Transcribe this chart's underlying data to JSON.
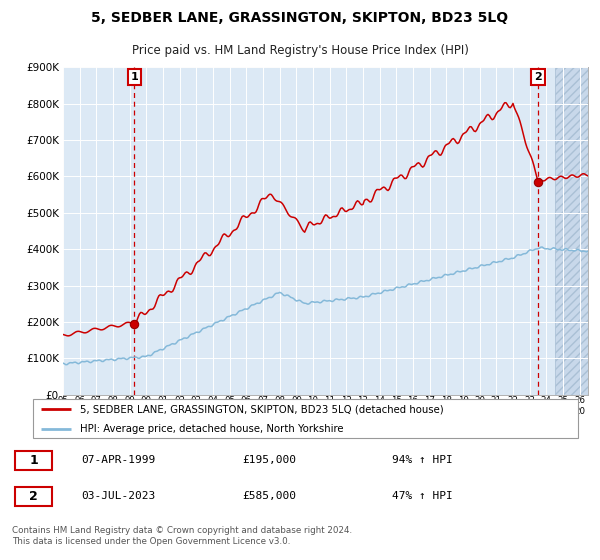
{
  "title": "5, SEDBER LANE, GRASSINGTON, SKIPTON, BD23 5LQ",
  "subtitle": "Price paid vs. HM Land Registry's House Price Index (HPI)",
  "background_color": "#dce9f5",
  "grid_color": "#ffffff",
  "sale1_date_num": 1999.27,
  "sale1_price": 195000,
  "sale2_date_num": 2023.5,
  "sale2_price": 585000,
  "legend_line1": "5, SEDBER LANE, GRASSINGTON, SKIPTON, BD23 5LQ (detached house)",
  "legend_line2": "HPI: Average price, detached house, North Yorkshire",
  "annot1_date": "07-APR-1999",
  "annot1_price": "£195,000",
  "annot1_hpi": "94% ↑ HPI",
  "annot2_date": "03-JUL-2023",
  "annot2_price": "£585,000",
  "annot2_hpi": "47% ↑ HPI",
  "footnote": "Contains HM Land Registry data © Crown copyright and database right 2024.\nThis data is licensed under the Open Government Licence v3.0.",
  "xmin": 1995.0,
  "xmax": 2026.5,
  "ymin": 0,
  "ymax": 900000,
  "hatch_start": 2024.5,
  "prop_line_color": "#cc0000",
  "hpi_line_color": "#85b9d9",
  "dashed_line_color": "#cc0000"
}
